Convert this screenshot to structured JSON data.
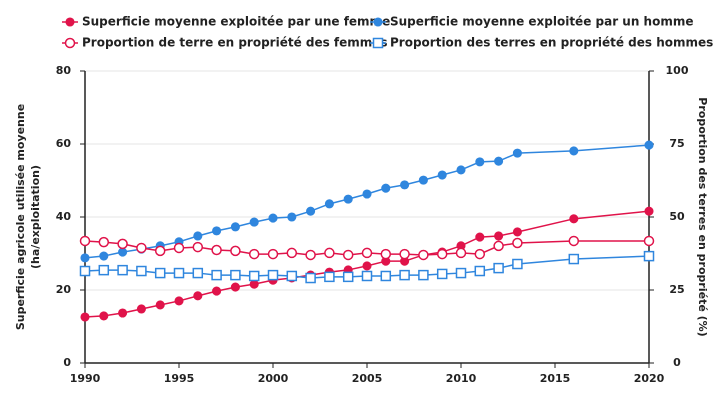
{
  "chart_data": {
    "type": "line",
    "ylabel": "Superficie agricole utilisée moyenne\n(ha/exploitation)",
    "y2label": "Proportion des terres en propriété (%)",
    "x": [
      1990,
      1991,
      1992,
      1993,
      1994,
      1995,
      1996,
      1997,
      1998,
      1999,
      2000,
      2001,
      2002,
      2003,
      2004,
      2005,
      2006,
      2007,
      2008,
      2009,
      2010,
      2011,
      2012,
      2013,
      2016,
      2020
    ],
    "xlim": [
      1990,
      2020
    ],
    "xticks": [
      1990,
      1995,
      2000,
      2005,
      2010,
      2015,
      2020
    ],
    "ylim": [
      0,
      80
    ],
    "yticks": [
      0,
      20,
      40,
      60,
      80
    ],
    "y2lim": [
      0,
      100
    ],
    "y2ticks": [
      0,
      25,
      50,
      75,
      100
    ],
    "grid": true,
    "series": [
      {
        "name": "Superficie moyenne exploitée par une femme",
        "color": "#e0134a",
        "marker": "circle",
        "filled": true,
        "axis": "y",
        "values": [
          12.6,
          12.9,
          13.7,
          14.8,
          15.9,
          17.0,
          18.4,
          19.7,
          20.8,
          21.6,
          22.7,
          23.3,
          24.1,
          24.9,
          25.5,
          26.6,
          27.9,
          27.9,
          29.6,
          30.4,
          32.1,
          34.5,
          34.8,
          35.9,
          39.5,
          41.6
        ]
      },
      {
        "name": "Superficie moyenne exploitée par un homme",
        "color": "#2f86de",
        "marker": "circle",
        "filled": true,
        "axis": "y",
        "values": [
          28.8,
          29.3,
          30.4,
          31.2,
          32.1,
          33.2,
          34.8,
          36.2,
          37.3,
          38.6,
          39.7,
          40.0,
          41.6,
          43.6,
          44.9,
          46.3,
          47.9,
          48.8,
          50.1,
          51.5,
          52.9,
          55.1,
          55.3,
          57.5,
          58.1,
          59.7
        ]
      },
      {
        "name": "Proportion de terre en propriété des femmes",
        "color": "#e0134a",
        "marker": "circle",
        "filled": false,
        "axis": "y2",
        "values": [
          41.8,
          41.4,
          40.8,
          39.4,
          38.4,
          39.4,
          39.7,
          38.7,
          38.4,
          37.3,
          37.3,
          37.7,
          37.0,
          37.7,
          37.0,
          37.7,
          37.3,
          37.3,
          37.0,
          37.3,
          37.7,
          37.3,
          40.1,
          41.1,
          41.8,
          41.8
        ]
      },
      {
        "name": "Proportion des terres en propriété des hommes",
        "color": "#2f86de",
        "marker": "square",
        "filled": false,
        "axis": "y2",
        "values": [
          31.5,
          31.8,
          31.8,
          31.5,
          30.8,
          30.8,
          30.8,
          30.1,
          30.1,
          29.8,
          30.1,
          29.8,
          29.1,
          29.5,
          29.5,
          29.8,
          29.8,
          30.1,
          30.1,
          30.5,
          30.8,
          31.5,
          32.5,
          33.9,
          35.6,
          36.6
        ]
      }
    ]
  }
}
